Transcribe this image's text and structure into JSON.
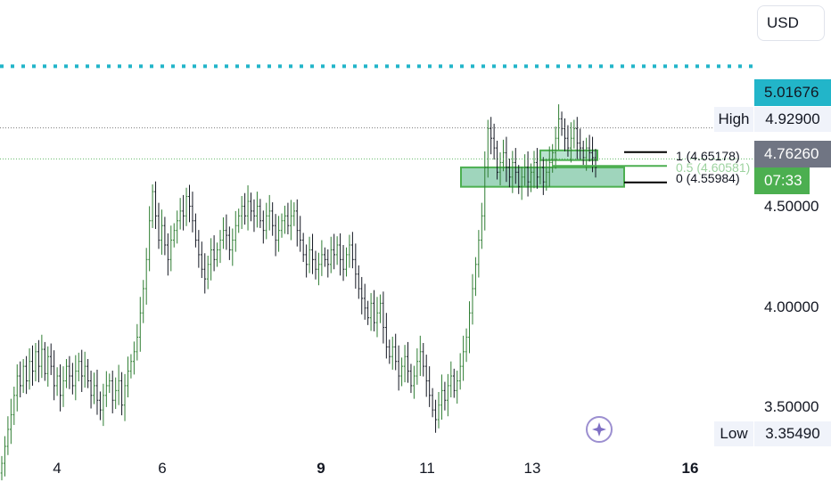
{
  "currency": "USD",
  "price_tags": {
    "target": {
      "label": "5.01676",
      "color": "#22b5c9"
    },
    "high_label": "High",
    "high_value": "4.92900",
    "current": {
      "label": "4.76260",
      "color": "#707583"
    },
    "countdown": {
      "label": "07:33",
      "color": "#4caf50"
    },
    "low_label": "Low",
    "low_value": "3.35490"
  },
  "fib": {
    "level_1": "1 (4.65178)",
    "level_05": "0.5 (4.60581)",
    "level_0": "0 (4.55984)"
  },
  "chart_data": {
    "type": "candlestick",
    "x_ticks": [
      {
        "label": "4",
        "bold": false
      },
      {
        "label": "6",
        "bold": false
      },
      {
        "label": "9",
        "bold": true
      },
      {
        "label": "11",
        "bold": false
      },
      {
        "label": "13",
        "bold": false
      },
      {
        "label": "16",
        "bold": true
      }
    ],
    "y_ticks": [
      "4.50000",
      "4.00000",
      "3.50000"
    ],
    "ylim": [
      3.27,
      5.29
    ],
    "series_close": [
      3.38,
      3.45,
      3.52,
      3.58,
      3.66,
      3.74,
      3.7,
      3.78,
      3.72,
      3.8,
      3.76,
      3.84,
      3.78,
      3.85,
      3.75,
      3.82,
      3.78,
      3.7,
      3.74,
      3.66,
      3.72,
      3.78,
      3.74,
      3.7,
      3.76,
      3.8,
      3.74,
      3.78,
      3.72,
      3.66,
      3.7,
      3.64,
      3.6,
      3.66,
      3.7,
      3.72,
      3.64,
      3.68,
      3.72,
      3.62,
      3.7,
      3.76,
      3.8,
      3.84,
      3.9,
      4.0,
      4.1,
      4.22,
      4.38,
      4.5,
      4.4,
      4.3,
      4.36,
      4.28,
      4.22,
      4.3,
      4.34,
      4.38,
      4.42,
      4.4,
      4.48,
      4.44,
      4.38,
      4.3,
      4.24,
      4.18,
      4.14,
      4.2,
      4.26,
      4.22,
      4.26,
      4.3,
      4.34,
      4.32,
      4.26,
      4.3,
      4.36,
      4.4,
      4.44,
      4.4,
      4.46,
      4.42,
      4.4,
      4.44,
      4.38,
      4.34,
      4.4,
      4.42,
      4.36,
      4.3,
      4.34,
      4.38,
      4.4,
      4.36,
      4.4,
      4.42,
      4.34,
      4.3,
      4.24,
      4.2,
      4.26,
      4.22,
      4.18,
      4.2,
      4.24,
      4.22,
      4.2,
      4.26,
      4.24,
      4.28,
      4.22,
      4.18,
      4.24,
      4.28,
      4.22,
      4.16,
      4.1,
      4.06,
      4.02,
      3.98,
      4.04,
      3.96,
      4.0,
      4.04,
      3.94,
      3.86,
      3.82,
      3.86,
      3.8,
      3.74,
      3.78,
      3.82,
      3.76,
      3.7,
      3.74,
      3.8,
      3.84,
      3.78,
      3.72,
      3.66,
      3.6,
      3.56,
      3.62,
      3.68,
      3.64,
      3.7,
      3.74,
      3.68,
      3.72,
      3.78,
      3.84,
      3.9,
      4.0,
      4.1,
      4.2,
      4.3,
      4.4,
      4.6,
      4.76,
      4.72,
      4.68,
      4.58,
      4.62,
      4.66,
      4.6,
      4.56,
      4.62,
      4.58,
      4.52,
      4.56,
      4.6,
      4.54,
      4.58,
      4.62,
      4.56,
      4.6,
      4.54,
      4.58,
      4.62,
      4.66,
      4.72,
      4.8,
      4.76,
      4.72,
      4.68,
      4.72,
      4.76,
      4.7,
      4.68,
      4.64,
      4.68,
      4.66,
      4.64,
      4.6
    ],
    "zones": [
      {
        "name": "demand-zone-large",
        "from": 4.6,
        "to": 4.52
      },
      {
        "name": "demand-zone-small",
        "from": 4.67,
        "to": 4.63
      }
    ],
    "lines": {
      "target": 5.01676,
      "current": 4.7626,
      "fib_1": 4.65178,
      "fib_05": 4.60581,
      "fib_0": 4.55984
    }
  }
}
